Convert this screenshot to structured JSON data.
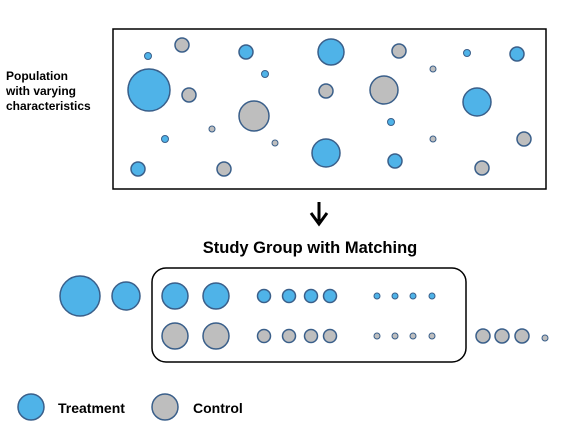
{
  "population_label_lines": [
    "Population",
    "with varying",
    "characteristics"
  ],
  "study_title": "Study Group with Matching",
  "legend": {
    "treatment_label": "Treatment",
    "control_label": "Control"
  },
  "colors": {
    "treatment_fill": "#4FB3E8",
    "control_fill": "#BEBEBE",
    "stroke": "#3A5F8A",
    "box_stroke": "#000000"
  }
}
